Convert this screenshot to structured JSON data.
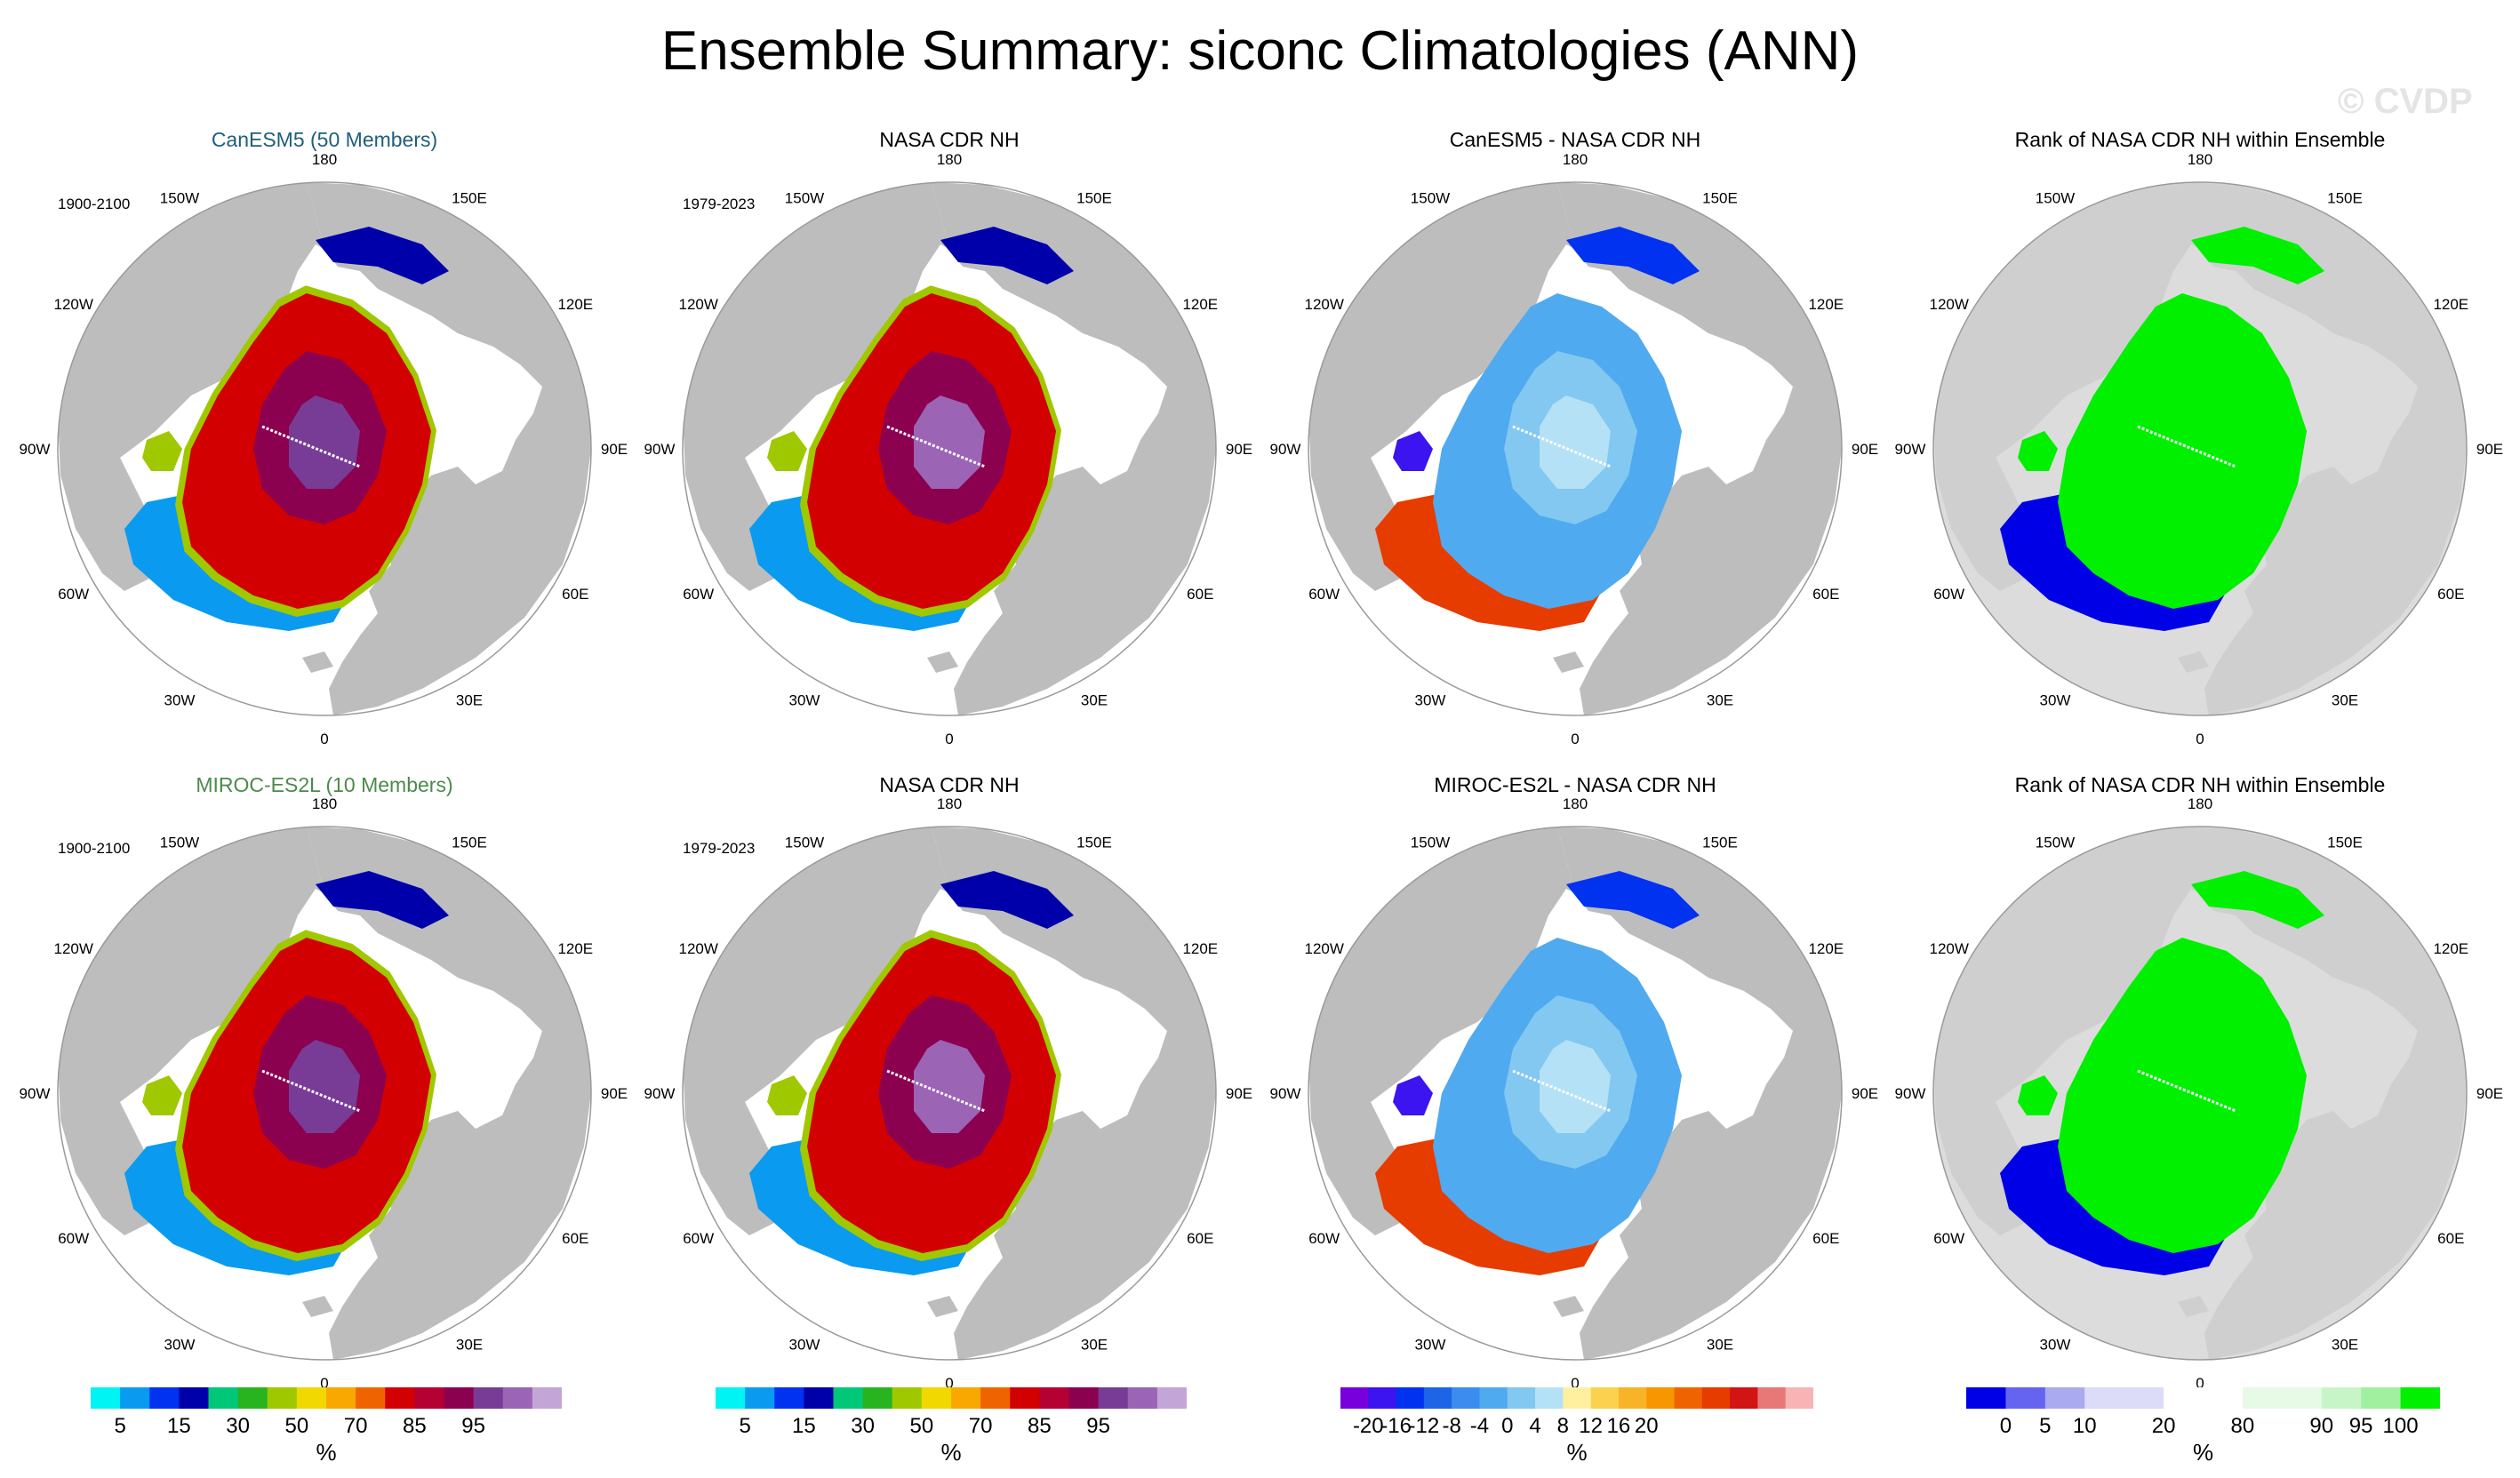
{
  "figure": {
    "title": "Ensemble Summary: siconc Climatologies (ANN)",
    "watermark": "© CVDP"
  },
  "lon_labels": [
    "180",
    "150E",
    "120E",
    "90E",
    "60E",
    "30E",
    "0",
    "30W",
    "60W",
    "90W",
    "120W",
    "150W"
  ],
  "colors": {
    "land": "#bdbdbd",
    "land_light": "#dcdcdc",
    "ocean": "#ffffff",
    "grid_line": "#9a9a9a"
  },
  "colorbars": {
    "siconc": {
      "colors": [
        "#00f4f4",
        "#0a9bf0",
        "#0032f0",
        "#0000aa",
        "#00c878",
        "#28b41e",
        "#a0c800",
        "#f0d800",
        "#f8a800",
        "#f06400",
        "#d20000",
        "#b40032",
        "#8c0050",
        "#783c96",
        "#9b64b4",
        "#c3a5d7"
      ],
      "labels": [
        "5",
        "15",
        "30",
        "50",
        "70",
        "85",
        "95"
      ],
      "label_boundaries": [
        1,
        3,
        5,
        7,
        9,
        11,
        13
      ],
      "unit": "%"
    },
    "diff": {
      "colors": [
        "#7800dc",
        "#3c14f0",
        "#0032f0",
        "#1e64e6",
        "#3c8cf0",
        "#50aaf0",
        "#82c8f0",
        "#b4e1f5",
        "#fff0a0",
        "#fad250",
        "#f8b428",
        "#f89600",
        "#f06400",
        "#e63c00",
        "#d21414",
        "#e67878",
        "#f8b4b4"
      ],
      "labels": [
        "-20",
        "-16",
        "-12",
        "-8",
        "-4",
        "0",
        "4",
        "8",
        "12",
        "16",
        "20"
      ],
      "label_boundaries": [
        1,
        2,
        3,
        4,
        5,
        6,
        7,
        8,
        9,
        10,
        11
      ],
      "unit": "%"
    },
    "rank": {
      "colors": [
        "#0000e6",
        "#6464f0",
        "#aaaaf0",
        "#dcdcf8",
        "#dcdcf8",
        "#ffffff",
        "#ffffff",
        "#e6fae6",
        "#e6fae6",
        "#c8f5c8",
        "#a0f0a0",
        "#00f000"
      ],
      "labels": [
        "0",
        "5",
        "10",
        "20",
        "80",
        "90",
        "95",
        "100"
      ],
      "label_boundaries": [
        1,
        2,
        3,
        5,
        7,
        9,
        10,
        11
      ],
      "unit": "%"
    }
  },
  "chart_data": [
    {
      "type": "map",
      "title": "CanESM5 (50 Members)",
      "period": "1900-2100",
      "row": 0,
      "col": 0,
      "colorbar": "siconc",
      "title_color": "#1f5f7a"
    },
    {
      "type": "map",
      "title": "NASA CDR NH",
      "period": "1979-2023",
      "row": 0,
      "col": 1,
      "colorbar": "siconc",
      "title_color": "#000000"
    },
    {
      "type": "map",
      "title": "CanESM5 - NASA CDR NH",
      "period": "",
      "row": 0,
      "col": 2,
      "colorbar": "diff",
      "title_color": "#000000"
    },
    {
      "type": "map",
      "title": "Rank of NASA CDR NH within Ensemble",
      "period": "",
      "row": 0,
      "col": 3,
      "colorbar": "rank",
      "title_color": "#000000"
    },
    {
      "type": "map",
      "title": "MIROC-ES2L (10 Members)",
      "period": "1900-2100",
      "row": 1,
      "col": 0,
      "colorbar": "siconc",
      "title_color": "#4c8a4c"
    },
    {
      "type": "map",
      "title": "NASA CDR NH",
      "period": "1979-2023",
      "row": 1,
      "col": 1,
      "colorbar": "siconc",
      "title_color": "#000000"
    },
    {
      "type": "map",
      "title": "MIROC-ES2L - NASA CDR NH",
      "period": "",
      "row": 1,
      "col": 2,
      "colorbar": "diff",
      "title_color": "#000000"
    },
    {
      "type": "map",
      "title": "Rank of NASA CDR NH within Ensemble",
      "period": "",
      "row": 1,
      "col": 3,
      "colorbar": "rank",
      "title_color": "#000000"
    }
  ]
}
